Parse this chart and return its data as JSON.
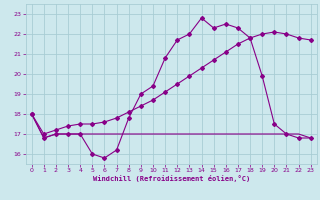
{
  "xlabel": "Windchill (Refroidissement éolien,°C)",
  "background_color": "#cde8ed",
  "grid_color": "#a8cdd4",
  "line_color": "#880088",
  "xlim": [
    -0.5,
    23.5
  ],
  "ylim": [
    15.5,
    23.5
  ],
  "yticks": [
    16,
    17,
    18,
    19,
    20,
    21,
    22,
    23
  ],
  "xticks": [
    0,
    1,
    2,
    3,
    4,
    5,
    6,
    7,
    8,
    9,
    10,
    11,
    12,
    13,
    14,
    15,
    16,
    17,
    18,
    19,
    20,
    21,
    22,
    23
  ],
  "series1_x": [
    0,
    1,
    2,
    3,
    4,
    5,
    6,
    7,
    8,
    9,
    10,
    11,
    12,
    13,
    14,
    15,
    16,
    17,
    18,
    19,
    20,
    21,
    22,
    23
  ],
  "series1_y": [
    18.0,
    16.8,
    17.0,
    17.0,
    17.0,
    16.0,
    15.8,
    16.2,
    17.8,
    19.0,
    19.4,
    20.8,
    21.7,
    22.0,
    22.8,
    22.3,
    22.5,
    22.3,
    21.8,
    19.9,
    17.5,
    17.0,
    16.8,
    16.8
  ],
  "series2_x": [
    0,
    1,
    2,
    3,
    4,
    5,
    6,
    7,
    8,
    9,
    10,
    11,
    12,
    13,
    14,
    15,
    16,
    17,
    18,
    19,
    20,
    21,
    22,
    23
  ],
  "series2_y": [
    18.0,
    17.0,
    17.2,
    17.4,
    17.5,
    17.5,
    17.6,
    17.8,
    18.1,
    18.4,
    18.7,
    19.1,
    19.5,
    19.9,
    20.3,
    20.7,
    21.1,
    21.5,
    21.8,
    22.0,
    22.1,
    22.0,
    21.8,
    21.7
  ],
  "series3_x": [
    0,
    1,
    2,
    3,
    4,
    5,
    6,
    7,
    8,
    9,
    10,
    11,
    12,
    13,
    14,
    15,
    16,
    17,
    18,
    19,
    20,
    21,
    22,
    23
  ],
  "series3_y": [
    18.0,
    16.8,
    17.0,
    17.0,
    17.0,
    17.0,
    17.0,
    17.0,
    17.0,
    17.0,
    17.0,
    17.0,
    17.0,
    17.0,
    17.0,
    17.0,
    17.0,
    17.0,
    17.0,
    17.0,
    17.0,
    17.0,
    17.0,
    16.8
  ]
}
